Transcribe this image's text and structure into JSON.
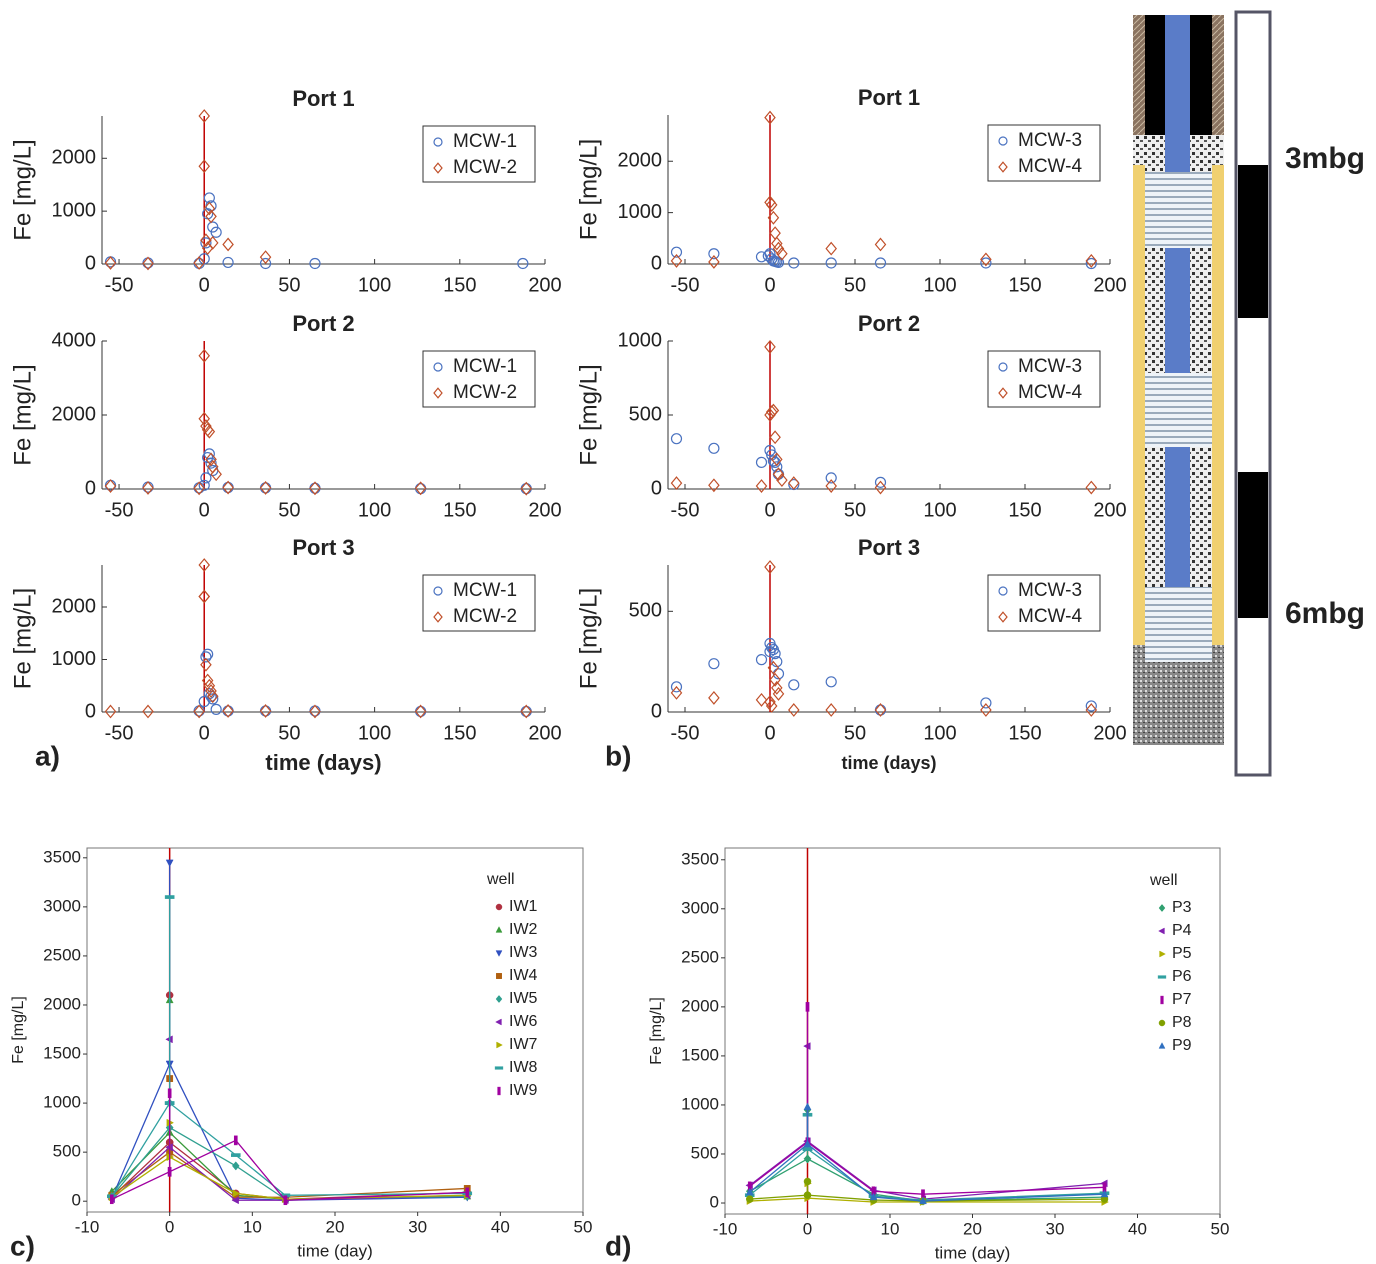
{
  "chart_data": [
    {
      "type": "scatter",
      "title": "Port 1",
      "ylabel": "Fe [mg/L]",
      "xlim": [
        -60,
        200
      ],
      "ylim": [
        0,
        2800
      ],
      "xticks": [
        -50,
        0,
        50,
        100,
        150,
        200
      ],
      "yticks": [
        0,
        1000,
        2000
      ],
      "box": false,
      "vline": {
        "x": 0,
        "color": "#c00000"
      },
      "series": [
        {
          "name": "MCW-1",
          "color": "#4a72c0",
          "marker": "circle",
          "x": [
            -55,
            -33,
            -3,
            0,
            1,
            2,
            3,
            4,
            5,
            7,
            14,
            36,
            65,
            187
          ],
          "values": [
            40,
            20,
            10,
            100,
            400,
            950,
            1250,
            1100,
            700,
            600,
            30,
            10,
            10,
            10
          ]
        },
        {
          "name": "MCW-2",
          "color": "#c0502a",
          "marker": "diamond",
          "x": [
            -55,
            -33,
            -3,
            0,
            0,
            1,
            2,
            3,
            4,
            5,
            14,
            36
          ],
          "values": [
            20,
            10,
            20,
            2800,
            1850,
            450,
            300,
            1050,
            900,
            400,
            370,
            130
          ]
        }
      ]
    },
    {
      "type": "scatter",
      "title": "Port 2",
      "ylabel": "Fe [mg/L]",
      "xlim": [
        -60,
        200
      ],
      "ylim": [
        0,
        4000
      ],
      "xticks": [
        -50,
        0,
        50,
        100,
        150,
        200
      ],
      "yticks": [
        0,
        2000,
        4000
      ],
      "box": false,
      "vline": {
        "x": 0,
        "color": "#c00000"
      },
      "series": [
        {
          "name": "MCW-1",
          "color": "#4a72c0",
          "marker": "circle",
          "x": [
            -55,
            -33,
            -3,
            0,
            1,
            2,
            3,
            4,
            5,
            14,
            36,
            65,
            127,
            189
          ],
          "values": [
            100,
            50,
            30,
            100,
            300,
            850,
            950,
            700,
            500,
            40,
            30,
            20,
            10,
            10
          ]
        },
        {
          "name": "MCW-2",
          "color": "#c0502a",
          "marker": "diamond",
          "x": [
            -55,
            -33,
            -3,
            0,
            0,
            1,
            2,
            3,
            4,
            5,
            7,
            14,
            36,
            65,
            127,
            189
          ],
          "values": [
            80,
            30,
            20,
            3600,
            1900,
            1700,
            1600,
            1550,
            800,
            600,
            400,
            40,
            30,
            20,
            20,
            10
          ]
        }
      ]
    },
    {
      "type": "scatter",
      "title": "Port 3",
      "ylabel": "Fe [mg/L]",
      "xlabel": "time (days)",
      "xlim": [
        -60,
        200
      ],
      "ylim": [
        0,
        2800
      ],
      "xticks": [
        -50,
        0,
        50,
        100,
        150,
        200
      ],
      "yticks": [
        0,
        1000,
        2000
      ],
      "box": false,
      "vline": {
        "x": 0,
        "color": "#c00000"
      },
      "series": [
        {
          "name": "MCW-1",
          "color": "#4a72c0",
          "marker": "circle",
          "x": [
            -3,
            0,
            1,
            2,
            3,
            4,
            5,
            7,
            14,
            36,
            65,
            127,
            189
          ],
          "values": [
            20,
            200,
            1050,
            1100,
            350,
            300,
            250,
            50,
            20,
            20,
            20,
            10,
            10
          ]
        },
        {
          "name": "MCW-2",
          "color": "#c0502a",
          "marker": "diamond",
          "x": [
            -55,
            -33,
            -3,
            0,
            0,
            0,
            1,
            2,
            3,
            4,
            5,
            14,
            36,
            65,
            127,
            189
          ],
          "values": [
            10,
            10,
            10,
            2800,
            2200,
            2200,
            900,
            600,
            500,
            400,
            300,
            20,
            20,
            10,
            10,
            10
          ]
        }
      ]
    },
    {
      "type": "scatter",
      "title": "Port 1",
      "ylabel": "Fe [mg/L]",
      "xlim": [
        -60,
        200
      ],
      "ylim": [
        0,
        2900
      ],
      "xticks": [
        -50,
        0,
        50,
        100,
        150,
        200
      ],
      "yticks": [
        0,
        1000,
        2000
      ],
      "box": false,
      "vline": {
        "x": 0,
        "color": "#c00000"
      },
      "series": [
        {
          "name": "MCW-3",
          "color": "#4a72c0",
          "marker": "circle",
          "x": [
            -55,
            -33,
            -5,
            -1,
            0,
            1,
            2,
            3,
            4,
            5,
            14,
            36,
            65,
            127,
            189
          ],
          "values": [
            230,
            200,
            140,
            160,
            200,
            100,
            60,
            50,
            40,
            30,
            20,
            20,
            20,
            20,
            10
          ]
        },
        {
          "name": "MCW-4",
          "color": "#c0502a",
          "marker": "diamond",
          "x": [
            -55,
            -33,
            0,
            0,
            1,
            2,
            3,
            4,
            5,
            7,
            36,
            65,
            127,
            189
          ],
          "values": [
            60,
            40,
            2850,
            1200,
            1150,
            900,
            600,
            400,
            300,
            200,
            300,
            380,
            90,
            60
          ]
        }
      ]
    },
    {
      "type": "scatter",
      "title": "Port 2",
      "ylabel": "Fe [mg/L]",
      "xlim": [
        -60,
        200
      ],
      "ylim": [
        0,
        1000
      ],
      "xticks": [
        -50,
        0,
        50,
        100,
        150,
        200
      ],
      "yticks": [
        0,
        500,
        1000
      ],
      "box": false,
      "vline": {
        "x": 0,
        "color": "#c00000"
      },
      "series": [
        {
          "name": "MCW-3",
          "color": "#4a72c0",
          "marker": "circle",
          "x": [
            -55,
            -33,
            -5,
            0,
            1,
            2,
            3,
            4,
            5,
            14,
            36,
            65
          ],
          "values": [
            340,
            275,
            180,
            260,
            230,
            190,
            180,
            150,
            100,
            30,
            75,
            45
          ]
        },
        {
          "name": "MCW-4",
          "color": "#c0502a",
          "marker": "diamond",
          "x": [
            -55,
            -33,
            -5,
            0,
            0,
            1,
            2,
            3,
            4,
            5,
            7,
            14,
            36,
            65,
            189
          ],
          "values": [
            40,
            25,
            20,
            960,
            500,
            520,
            530,
            350,
            200,
            100,
            60,
            40,
            20,
            10,
            10
          ]
        }
      ]
    },
    {
      "type": "scatter",
      "title": "Port 3",
      "ylabel": "Fe [mg/L]",
      "xlabel": "time (days)",
      "xlim": [
        -60,
        200
      ],
      "ylim": [
        0,
        730
      ],
      "xticks": [
        -50,
        0,
        50,
        100,
        150,
        200
      ],
      "yticks": [
        0,
        500
      ],
      "box": false,
      "vline": {
        "x": 0,
        "color": "#c00000"
      },
      "series": [
        {
          "name": "MCW-3",
          "color": "#4a72c0",
          "marker": "circle",
          "x": [
            -55,
            -33,
            -5,
            0,
            0,
            1,
            2,
            3,
            4,
            5,
            14,
            36,
            65,
            127,
            189
          ],
          "values": [
            125,
            240,
            260,
            340,
            300,
            320,
            310,
            290,
            250,
            190,
            135,
            150,
            10,
            45,
            30
          ]
        },
        {
          "name": "MCW-4",
          "color": "#c0502a",
          "marker": "diamond",
          "x": [
            -55,
            -33,
            -5,
            0,
            0,
            1,
            2,
            3,
            4,
            5,
            14,
            36,
            65,
            127,
            189
          ],
          "values": [
            95,
            70,
            60,
            720,
            50,
            30,
            220,
            160,
            120,
            90,
            10,
            10,
            10,
            10,
            10
          ]
        }
      ]
    },
    {
      "type": "line",
      "ylabel": "Fe [mg/L]",
      "xlabel": "time (day)",
      "legend_title": "well",
      "xlim": [
        -10,
        50
      ],
      "ylim": [
        -110,
        3600
      ],
      "xticks": [
        -10,
        0,
        10,
        20,
        30,
        40,
        50
      ],
      "yticks": [
        0,
        500,
        1000,
        1500,
        2000,
        2500,
        3000,
        3500
      ],
      "box": true,
      "vline": {
        "x": 0,
        "color": "#c00000"
      },
      "series": [
        {
          "name": "IW1",
          "color": "#b03040",
          "marker": "circle",
          "x": [
            -7,
            0,
            0,
            0,
            8,
            14,
            36
          ],
          "values": [
            40,
            600,
            2100,
            600,
            80,
            20,
            90
          ]
        },
        {
          "name": "IW2",
          "color": "#3a9a3a",
          "marker": "triangle-up",
          "x": [
            -7,
            0,
            0,
            0,
            8,
            14,
            36
          ],
          "values": [
            100,
            700,
            2050,
            700,
            60,
            20,
            50
          ]
        },
        {
          "name": "IW3",
          "color": "#3050c0",
          "marker": "triangle-down",
          "x": [
            -7,
            0,
            0,
            0,
            8,
            14,
            36
          ],
          "values": [
            30,
            1400,
            3450,
            1400,
            30,
            10,
            40
          ]
        },
        {
          "name": "IW4",
          "color": "#b06010",
          "marker": "square",
          "x": [
            -7,
            0,
            0,
            0,
            8,
            14,
            36
          ],
          "values": [
            60,
            500,
            1250,
            500,
            40,
            40,
            130
          ]
        },
        {
          "name": "IW5",
          "color": "#30a090",
          "marker": "diamond",
          "x": [
            -7,
            0,
            0,
            0,
            8,
            14,
            36
          ],
          "values": [
            50,
            750,
            1000,
            750,
            360,
            20,
            50
          ]
        },
        {
          "name": "IW6",
          "color": "#8020b0",
          "marker": "triangle-left",
          "x": [
            -7,
            0,
            0,
            0,
            8,
            14,
            36
          ],
          "values": [
            20,
            550,
            1650,
            550,
            10,
            10,
            60
          ]
        },
        {
          "name": "IW7",
          "color": "#b0b000",
          "marker": "triangle-right",
          "x": [
            -7,
            0,
            0,
            0,
            8,
            14,
            36
          ],
          "values": [
            40,
            450,
            800,
            450,
            80,
            20,
            60
          ]
        },
        {
          "name": "IW8",
          "color": "#30a0a0",
          "marker": "dash",
          "x": [
            -7,
            0,
            0,
            0,
            8,
            14,
            36
          ],
          "values": [
            50,
            1000,
            3100,
            1000,
            470,
            60,
            80
          ]
        },
        {
          "name": "IW9",
          "color": "#a000a0",
          "marker": "bar",
          "x": [
            -7,
            0,
            0,
            0,
            8,
            14,
            36
          ],
          "values": [
            20,
            300,
            1100,
            300,
            620,
            10,
            90
          ]
        }
      ]
    },
    {
      "type": "line",
      "ylabel": "Fe [mg/L]",
      "xlabel": "time (day)",
      "legend_title": "well",
      "xlim": [
        -10,
        50
      ],
      "ylim": [
        -112,
        3620
      ],
      "xticks": [
        -10,
        0,
        10,
        20,
        30,
        40,
        50
      ],
      "yticks": [
        0,
        500,
        1000,
        1500,
        2000,
        2500,
        3000,
        3500
      ],
      "box": true,
      "vline": {
        "x": 0,
        "color": "#c00000"
      },
      "series": [
        {
          "name": "P3",
          "color": "#30a070",
          "marker": "diamond",
          "x": [
            -7,
            0,
            0,
            0,
            8,
            14,
            36
          ],
          "values": [
            120,
            450,
            950,
            450,
            90,
            20,
            60
          ]
        },
        {
          "name": "P4",
          "color": "#8020b0",
          "marker": "triangle-left",
          "x": [
            -7,
            0,
            0,
            0,
            8,
            14,
            36
          ],
          "values": [
            180,
            630,
            1600,
            630,
            130,
            40,
            200
          ]
        },
        {
          "name": "P5",
          "color": "#b0b000",
          "marker": "triangle-right",
          "x": [
            -7,
            0,
            0,
            0,
            8,
            14,
            36
          ],
          "values": [
            20,
            50,
            200,
            50,
            10,
            10,
            10
          ]
        },
        {
          "name": "P6",
          "color": "#30a0a0",
          "marker": "dash",
          "x": [
            -7,
            0,
            0,
            0,
            8,
            14,
            36
          ],
          "values": [
            80,
            550,
            900,
            550,
            70,
            30,
            100
          ]
        },
        {
          "name": "P7",
          "color": "#a000a0",
          "marker": "bar",
          "x": [
            -7,
            0,
            0,
            0,
            8,
            14,
            36
          ],
          "values": [
            170,
            620,
            2000,
            620,
            120,
            90,
            160
          ]
        },
        {
          "name": "P8",
          "color": "#80a000",
          "marker": "circle",
          "x": [
            -7,
            0,
            0,
            0,
            8,
            14,
            36
          ],
          "values": [
            40,
            80,
            220,
            80,
            30,
            20,
            40
          ]
        },
        {
          "name": "P9",
          "color": "#3070c0",
          "marker": "triangle-up",
          "x": [
            -7,
            0,
            0,
            0,
            8,
            14,
            36
          ],
          "values": [
            110,
            600,
            980,
            600,
            60,
            20,
            90
          ]
        }
      ]
    }
  ],
  "panel_labels": [
    "a)",
    "b)",
    "c)",
    "d)"
  ],
  "depth_labels": [
    "3mbg",
    "6mbg"
  ]
}
